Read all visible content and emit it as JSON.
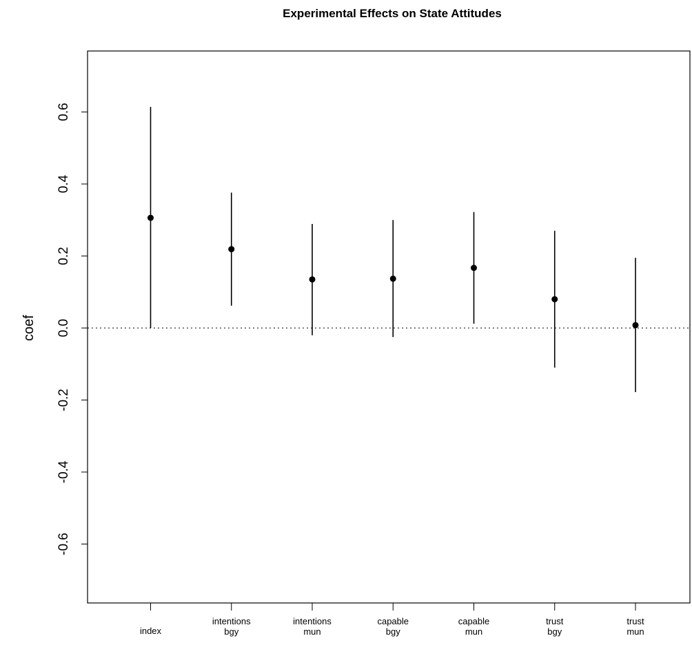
{
  "chart_data": {
    "type": "scatter",
    "title": "Experimental Effects on State Attitudes",
    "xlabel": "",
    "ylabel": "coef",
    "ylim": [
      -0.75,
      0.75
    ],
    "yticks": [
      "-0.6",
      "-0.4",
      "-0.2",
      "0.0",
      "0.2",
      "0.4",
      "0.6"
    ],
    "reference_line": 0.0,
    "categories": [
      [
        "index",
        ""
      ],
      [
        "intentions",
        "bgy"
      ],
      [
        "intentions",
        "mun"
      ],
      [
        "capable",
        "bgy"
      ],
      [
        "capable",
        "mun"
      ],
      [
        "trust",
        "bgy"
      ],
      [
        "trust",
        "mun"
      ]
    ],
    "points": [
      {
        "coef": 0.306,
        "lower": 0.0,
        "upper": 0.614
      },
      {
        "coef": 0.219,
        "lower": 0.062,
        "upper": 0.376
      },
      {
        "coef": 0.135,
        "lower": -0.02,
        "upper": 0.289
      },
      {
        "coef": 0.137,
        "lower": -0.025,
        "upper": 0.3
      },
      {
        "coef": 0.167,
        "lower": 0.012,
        "upper": 0.322
      },
      {
        "coef": 0.08,
        "lower": -0.11,
        "upper": 0.27
      },
      {
        "coef": 0.008,
        "lower": -0.178,
        "upper": 0.195
      }
    ],
    "grid": false,
    "legend": "none"
  }
}
